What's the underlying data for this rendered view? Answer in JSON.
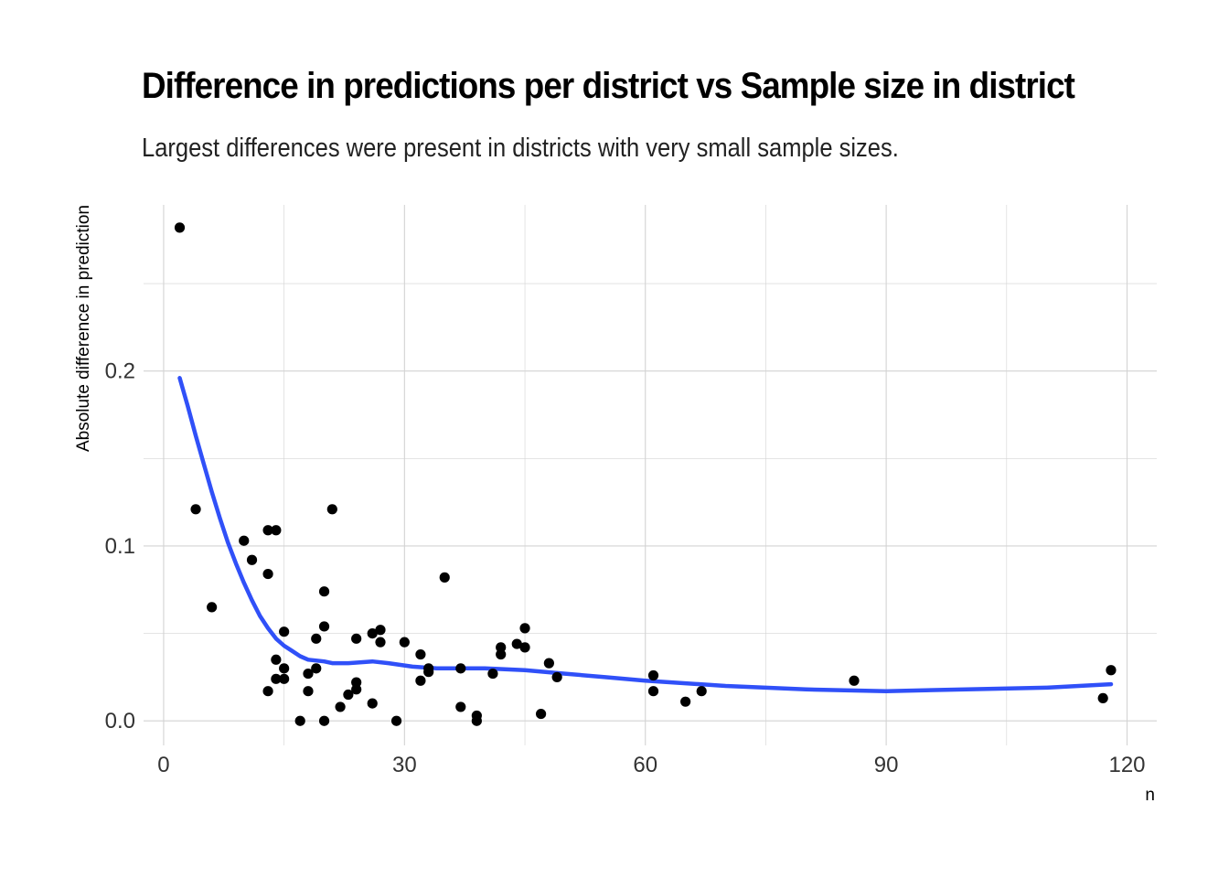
{
  "chart_data": {
    "type": "scatter",
    "title": "Difference in predictions per district vs Sample size in district",
    "subtitle": "Largest differences were present in districts with very small sample sizes.",
    "xlabel": "n",
    "ylabel": "Absolute difference in prediction",
    "xlim": [
      -2.5,
      123.7
    ],
    "ylim": [
      -0.014,
      0.295
    ],
    "x_ticks": [
      0,
      30,
      60,
      90,
      120
    ],
    "x_tick_labels": [
      "0",
      "30",
      "60",
      "90",
      "120"
    ],
    "y_ticks": [
      0.0,
      0.1,
      0.2
    ],
    "y_tick_labels": [
      "0.0",
      "0.1",
      "0.2"
    ],
    "grid": true,
    "legend": "none",
    "colors": {
      "points": "#000000",
      "smooth": "#3050F8",
      "grid": "#d3d3d3"
    },
    "series": [
      {
        "type": "scatter",
        "points": [
          [
            2,
            0.282
          ],
          [
            4,
            0.121
          ],
          [
            6,
            0.065
          ],
          [
            10,
            0.103
          ],
          [
            11,
            0.092
          ],
          [
            13,
            0.109
          ],
          [
            14,
            0.109
          ],
          [
            13,
            0.084
          ],
          [
            13,
            0.017
          ],
          [
            14,
            0.035
          ],
          [
            14,
            0.024
          ],
          [
            15,
            0.051
          ],
          [
            15,
            0.03
          ],
          [
            15,
            0.024
          ],
          [
            17,
            0.0
          ],
          [
            18,
            0.027
          ],
          [
            18,
            0.017
          ],
          [
            19,
            0.047
          ],
          [
            19,
            0.03
          ],
          [
            20,
            0.074
          ],
          [
            20,
            0.054
          ],
          [
            20,
            0.0
          ],
          [
            21,
            0.121
          ],
          [
            22,
            0.008
          ],
          [
            23,
            0.015
          ],
          [
            24,
            0.047
          ],
          [
            24,
            0.022
          ],
          [
            24,
            0.018
          ],
          [
            26,
            0.05
          ],
          [
            26,
            0.01
          ],
          [
            27,
            0.052
          ],
          [
            27,
            0.045
          ],
          [
            29,
            0.0
          ],
          [
            30,
            0.045
          ],
          [
            32,
            0.038
          ],
          [
            32,
            0.023
          ],
          [
            33,
            0.03
          ],
          [
            33,
            0.028
          ],
          [
            35,
            0.082
          ],
          [
            37,
            0.03
          ],
          [
            37,
            0.008
          ],
          [
            39,
            0.003
          ],
          [
            39,
            0.0
          ],
          [
            41,
            0.027
          ],
          [
            42,
            0.042
          ],
          [
            42,
            0.038
          ],
          [
            44,
            0.044
          ],
          [
            45,
            0.053
          ],
          [
            45,
            0.042
          ],
          [
            47,
            0.004
          ],
          [
            48,
            0.033
          ],
          [
            49,
            0.025
          ],
          [
            61,
            0.026
          ],
          [
            61,
            0.017
          ],
          [
            65,
            0.011
          ],
          [
            67,
            0.017
          ],
          [
            86,
            0.023
          ],
          [
            117,
            0.013
          ],
          [
            118,
            0.029
          ]
        ]
      },
      {
        "type": "line",
        "points": [
          [
            2,
            0.196
          ],
          [
            3,
            0.18
          ],
          [
            4,
            0.163
          ],
          [
            5,
            0.147
          ],
          [
            6,
            0.131
          ],
          [
            7,
            0.116
          ],
          [
            8,
            0.102
          ],
          [
            9,
            0.09
          ],
          [
            10,
            0.079
          ],
          [
            11,
            0.069
          ],
          [
            12,
            0.06
          ],
          [
            13,
            0.053
          ],
          [
            14,
            0.047
          ],
          [
            15,
            0.043
          ],
          [
            16,
            0.04
          ],
          [
            17,
            0.037
          ],
          [
            18,
            0.035
          ],
          [
            20,
            0.034
          ],
          [
            21,
            0.033
          ],
          [
            23,
            0.033
          ],
          [
            26,
            0.034
          ],
          [
            28,
            0.033
          ],
          [
            31,
            0.031
          ],
          [
            34,
            0.03
          ],
          [
            40,
            0.03
          ],
          [
            45,
            0.029
          ],
          [
            50,
            0.027
          ],
          [
            55,
            0.025
          ],
          [
            60,
            0.023
          ],
          [
            70,
            0.02
          ],
          [
            80,
            0.018
          ],
          [
            90,
            0.017
          ],
          [
            100,
            0.018
          ],
          [
            110,
            0.019
          ],
          [
            118,
            0.021
          ]
        ]
      }
    ]
  }
}
